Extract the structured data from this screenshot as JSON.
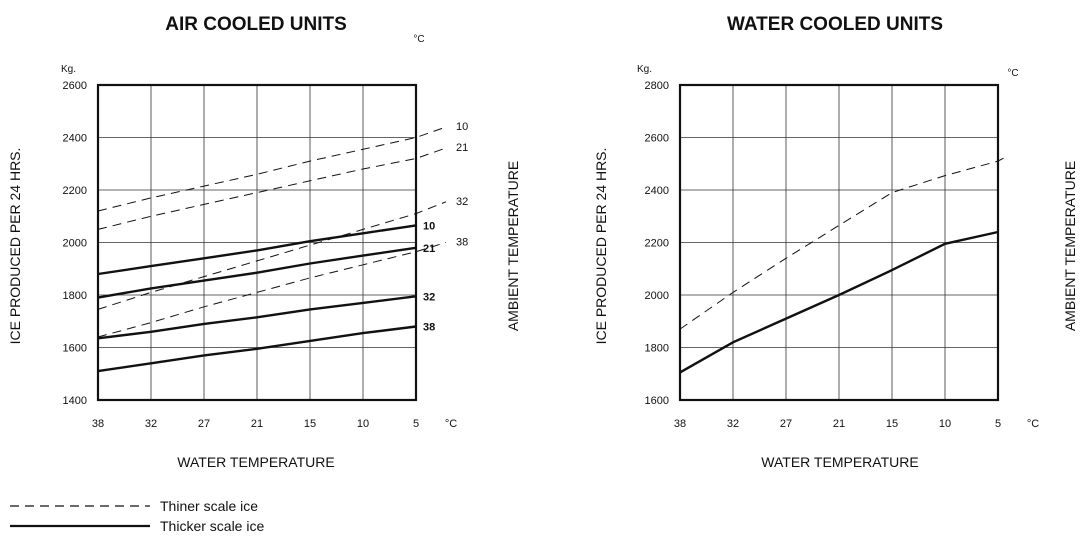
{
  "chart_data": [
    {
      "type": "line",
      "title": "AIR COOLED UNITS",
      "ylabel": "ICE PRODUCED PER 24 HRS.",
      "y_unit": "Kg.",
      "xlabel": "WATER TEMPERATURE",
      "x_unit": "°C",
      "right_label": "AMBIENT TEMPERATURE",
      "right_unit": "°C",
      "x_categories": [
        "38",
        "32",
        "27",
        "21",
        "15",
        "10",
        "5"
      ],
      "y_ticks": [
        "1400",
        "1600",
        "1800",
        "2000",
        "2200",
        "2400",
        "2600"
      ],
      "ylim": [
        1400,
        2600
      ],
      "grid": true,
      "series": [
        {
          "name": "10",
          "style": "dashed",
          "values": [
            2120,
            2170,
            2215,
            2260,
            2310,
            2355,
            2400
          ],
          "extended_end": 2440
        },
        {
          "name": "21",
          "style": "dashed",
          "values": [
            2050,
            2100,
            2145,
            2190,
            2235,
            2280,
            2320
          ],
          "extended_end": 2360
        },
        {
          "name": "32",
          "style": "dashed",
          "values": [
            1745,
            1810,
            1870,
            1930,
            1990,
            2050,
            2110
          ],
          "extended_end": 2155
        },
        {
          "name": "38",
          "style": "dashed",
          "values": [
            1640,
            1695,
            1755,
            1810,
            1865,
            1915,
            1965
          ],
          "extended_end": 2000
        },
        {
          "name": "10",
          "style": "solid",
          "values": [
            1880,
            1910,
            1940,
            1970,
            2005,
            2035,
            2065
          ]
        },
        {
          "name": "21",
          "style": "solid",
          "values": [
            1790,
            1825,
            1855,
            1885,
            1920,
            1950,
            1980
          ]
        },
        {
          "name": "32",
          "style": "solid",
          "values": [
            1635,
            1660,
            1690,
            1715,
            1745,
            1770,
            1795
          ]
        },
        {
          "name": "38",
          "style": "solid",
          "values": [
            1510,
            1540,
            1570,
            1595,
            1625,
            1655,
            1680
          ]
        }
      ]
    },
    {
      "type": "line",
      "title": "WATER COOLED UNITS",
      "ylabel": "ICE PRODUCED PER 24 HRS.",
      "y_unit": "Kg.",
      "xlabel": "WATER TEMPERATURE",
      "x_unit": "°C",
      "right_label": "AMBIENT TEMPERATURE",
      "right_unit": "°C",
      "x_categories": [
        "38",
        "32",
        "27",
        "21",
        "15",
        "10",
        "5"
      ],
      "y_ticks": [
        "1600",
        "1800",
        "2000",
        "2200",
        "2400",
        "2600",
        "2800"
      ],
      "ylim": [
        1600,
        2800
      ],
      "grid": true,
      "series": [
        {
          "style": "dashed",
          "values": [
            1870,
            2010,
            2140,
            2265,
            2390,
            2455,
            2510
          ],
          "extended_end": 2530
        },
        {
          "style": "solid",
          "values": [
            1705,
            1820,
            1910,
            2000,
            2095,
            2195,
            2240
          ]
        }
      ]
    }
  ],
  "legend": {
    "dashed_label": "Thiner scale ice",
    "solid_label": "Thicker scale ice"
  }
}
